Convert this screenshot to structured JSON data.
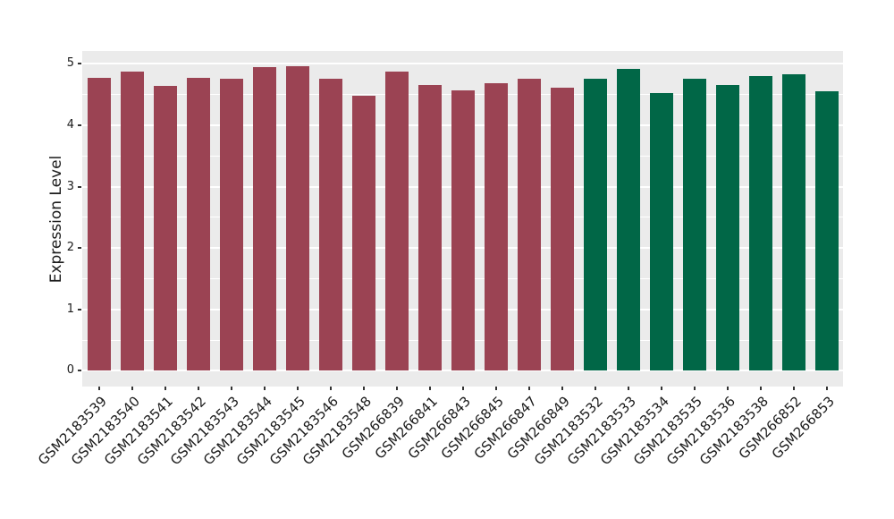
{
  "chart_data": {
    "type": "bar",
    "title": "",
    "xlabel": "",
    "ylabel": "Expression Level",
    "ylim": [
      0,
      5.2
    ],
    "yticks": [
      0,
      1,
      2,
      3,
      4,
      5
    ],
    "grid": "major and minor horizontal white gridlines on gray panel",
    "legend_position": "none",
    "panel_background": "#EBEBEB",
    "gridline_color": "#FFFFFF",
    "axis_text_color": "#1b1b1b",
    "categories": [
      "GSM2183539",
      "GSM2183540",
      "GSM2183541",
      "GSM2183542",
      "GSM2183543",
      "GSM2183544",
      "GSM2183545",
      "GSM2183546",
      "GSM2183548",
      "GSM266839",
      "GSM266841",
      "GSM266843",
      "GSM266845",
      "GSM266847",
      "GSM266849",
      "GSM2183532",
      "GSM2183533",
      "GSM2183534",
      "GSM2183535",
      "GSM2183536",
      "GSM2183538",
      "GSM266852",
      "GSM266853"
    ],
    "values": [
      4.77,
      4.88,
      4.64,
      4.77,
      4.75,
      4.95,
      4.96,
      4.75,
      4.48,
      4.88,
      4.66,
      4.57,
      4.69,
      4.75,
      4.61,
      4.75,
      4.92,
      4.52,
      4.75,
      4.66,
      4.8,
      4.83,
      4.55
    ],
    "bar_colors": [
      "#9B4353",
      "#9B4353",
      "#9B4353",
      "#9B4353",
      "#9B4353",
      "#9B4353",
      "#9B4353",
      "#9B4353",
      "#9B4353",
      "#9B4353",
      "#9B4353",
      "#9B4353",
      "#9B4353",
      "#9B4353",
      "#9B4353",
      "#016747",
      "#016747",
      "#016747",
      "#016747",
      "#016747",
      "#016747",
      "#016747",
      "#016747"
    ],
    "group_colors": {
      "group_1": "#9B4353",
      "group_2": "#016747"
    },
    "group_sizes": {
      "group_1": 15,
      "group_2": 8
    }
  }
}
